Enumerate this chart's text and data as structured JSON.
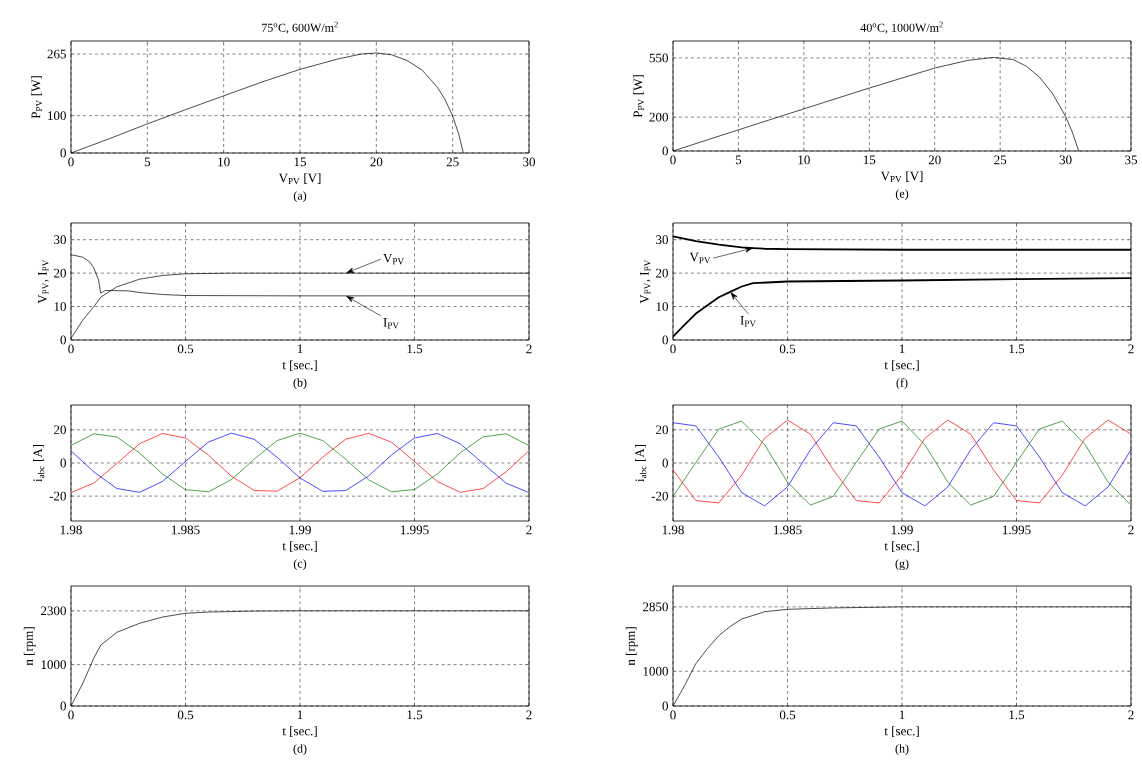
{
  "chart_data": [
    {
      "type": "line",
      "title": "75$^{o}$C, 600W/m$^{2}$",
      "xlabel": "V$_{PV}$ [V]",
      "ylabel": "P$_{PV}$ [W]",
      "annotations": [
        "(a)"
      ],
      "grid": true,
      "xlim": [
        0,
        30
      ],
      "xticks": [
        0,
        5,
        10,
        15,
        20,
        25,
        30
      ],
      "ylim": [
        0,
        300
      ],
      "yticks": [
        0,
        100,
        265
      ],
      "series": [
        {
          "color": "#000000",
          "x": [
            0,
            2.5,
            5,
            7.5,
            10,
            12.5,
            15,
            17.5,
            19,
            20,
            21,
            22,
            23,
            24,
            24.5,
            25,
            25.4,
            25.7
          ],
          "values": [
            0,
            38,
            78,
            116,
            153,
            190,
            224,
            252,
            265,
            268,
            263,
            248,
            222,
            176,
            143,
            99,
            50,
            0
          ]
        }
      ]
    },
    {
      "type": "line",
      "title": "40$^{o}$C, 1000W/m$^{2}$",
      "xlabel": "V$_{PV}$ [V]",
      "ylabel": "P$_{PV}$ [W]",
      "annotations": [
        "(e)"
      ],
      "grid": true,
      "xlim": [
        0,
        35
      ],
      "xticks": [
        0,
        5,
        10,
        15,
        20,
        25,
        30,
        35
      ],
      "ylim": [
        0,
        650
      ],
      "yticks": [
        0,
        200,
        550
      ],
      "series": [
        {
          "color": "#000000",
          "x": [
            0,
            5,
            10,
            15,
            20,
            22.5,
            24.5,
            26,
            27,
            28,
            29,
            30,
            30.5,
            31
          ],
          "values": [
            0,
            125,
            249,
            372,
            490,
            535,
            553,
            540,
            501,
            437,
            340,
            204,
            114,
            0
          ]
        }
      ]
    },
    {
      "type": "line",
      "xlabel": "t [sec.]",
      "ylabel": "V$_{PV}$, I$_{PV}$",
      "annotations": [
        "(b)"
      ],
      "grid": true,
      "xlim": [
        0,
        2
      ],
      "xticks": [
        0,
        0.5,
        1,
        1.5,
        2
      ],
      "ylim": [
        0,
        35
      ],
      "yticks": [
        0,
        10,
        20,
        30
      ],
      "series": [
        {
          "name": "V$_{PV}$",
          "color": "#000000",
          "x": [
            0,
            0.05,
            0.1,
            0.13,
            0.2,
            0.3,
            0.4,
            0.5,
            0.7,
            1,
            1.2,
            1.5,
            2
          ],
          "values": [
            0.5,
            5.8,
            10,
            12.8,
            15.9,
            18.2,
            19.3,
            19.8,
            20,
            20,
            20,
            20,
            20
          ]
        },
        {
          "name": "I$_{PV}$",
          "color": "#000000",
          "x": [
            0,
            0.05,
            0.08,
            0.1,
            0.12,
            0.13,
            0.15,
            0.25,
            0.3,
            0.4,
            0.5,
            1,
            1.2,
            1.5,
            2
          ],
          "values": [
            25.5,
            24.8,
            23.5,
            21.5,
            18,
            14,
            14.8,
            14.7,
            14.2,
            13.6,
            13.3,
            13.2,
            13.2,
            13.2,
            13.2
          ]
        }
      ]
    },
    {
      "type": "line",
      "xlabel": "t [sec.]",
      "ylabel": "V$_{PV}$, I$_{PV}$",
      "annotations": [
        "(f)"
      ],
      "grid": true,
      "xlim": [
        0,
        2
      ],
      "xticks": [
        0,
        0.5,
        1,
        1.5,
        2
      ],
      "ylim": [
        0,
        35
      ],
      "yticks": [
        0,
        10,
        20,
        30
      ],
      "series": [
        {
          "name": "V$_{PV}$",
          "color": "#000000",
          "x": [
            0,
            0.1,
            0.2,
            0.3,
            0.35,
            0.4,
            0.5,
            1,
            1.5,
            2
          ],
          "values": [
            31,
            29.6,
            28.5,
            27.7,
            27.5,
            27.3,
            27.2,
            27,
            27,
            27
          ]
        },
        {
          "name": "I$_{PV}$",
          "color": "#000000",
          "x": [
            0,
            0.05,
            0.1,
            0.2,
            0.25,
            0.3,
            0.35,
            0.5,
            1,
            1.5,
            2
          ],
          "values": [
            1,
            4.5,
            7.9,
            12.8,
            14.4,
            16,
            17,
            17.5,
            17.8,
            18.2,
            18.5
          ]
        }
      ]
    },
    {
      "type": "line",
      "xlabel": "t [sec.]",
      "ylabel": "i$_{abc}$ [A]",
      "annotations": [
        "(c)"
      ],
      "grid": true,
      "xlim": [
        1.98,
        2
      ],
      "xticks": [
        1.98,
        1.985,
        1.99,
        1.995,
        2
      ],
      "ylim": [
        -35,
        35
      ],
      "yticks": [
        -20,
        0,
        20
      ],
      "x": [
        1.98,
        1.981,
        1.982,
        1.983,
        1.984,
        1.985,
        1.986,
        1.987,
        1.988,
        1.989,
        1.99,
        1.991,
        1.992,
        1.993,
        1.994,
        1.995,
        1.996,
        1.997,
        1.998,
        1.999,
        2
      ],
      "series": [
        {
          "color": "#ff0000",
          "values": [
            -17.9,
            -12.1,
            -0.3,
            11.7,
            17.8,
            15.1,
            4.8,
            -7.9,
            -16.6,
            -17.0,
            -8.9,
            3.6,
            14.4,
            17.9,
            12.5,
            0.9,
            -11.2,
            -17.7,
            -15.4,
            -5.3,
            7.4
          ]
        },
        {
          "color": "#0000ff",
          "values": [
            7.3,
            -5.4,
            -15.4,
            -17.7,
            -11.1,
            1.0,
            12.6,
            18.0,
            14.3,
            3.5,
            -9.1,
            -17.1,
            -16.6,
            -7.8,
            4.9,
            15.1,
            17.8,
            11.6,
            -0.4,
            -12.2,
            -17.9
          ]
        },
        {
          "color": "#008000",
          "values": [
            10.6,
            17.6,
            15.7,
            6.0,
            -6.7,
            -16.1,
            -17.4,
            -10.1,
            2.3,
            13.5,
            18.0,
            13.5,
            2.2,
            -10.2,
            -17.4,
            -16.0,
            -6.6,
            6.2,
            15.8,
            17.6,
            10.5
          ]
        }
      ]
    },
    {
      "type": "line",
      "xlabel": "t [sec.]",
      "ylabel": "i$_{abc}$ [A]",
      "annotations": [
        "(g)"
      ],
      "grid": true,
      "xlim": [
        1.98,
        2
      ],
      "xticks": [
        1.98,
        1.985,
        1.99,
        1.995,
        2
      ],
      "ylim": [
        -35,
        35
      ],
      "yticks": [
        -20,
        0,
        20
      ],
      "x": [
        1.98,
        1.981,
        1.982,
        1.983,
        1.984,
        1.985,
        1.986,
        1.987,
        1.988,
        1.989,
        1.99,
        1.991,
        1.992,
        1.993,
        1.994,
        1.995,
        1.996,
        1.997,
        1.998,
        1.999,
        2
      ],
      "series": [
        {
          "color": "#ff0000",
          "values": [
            -4.2,
            -22.7,
            -24.1,
            -7.3,
            14.9,
            25.9,
            17.4,
            -4.2,
            -22.7,
            -24.1,
            -7.3,
            14.9,
            25.9,
            17.4,
            -4.2,
            -22.7,
            -24.1,
            -7.3,
            14.9,
            25.9,
            17.4
          ]
        },
        {
          "color": "#0000ff",
          "values": [
            24.3,
            22.4,
            3.6,
            -17.9,
            -25.9,
            -14.4,
            8.0,
            24.3,
            22.4,
            3.6,
            -17.9,
            -25.9,
            -14.4,
            8.0,
            24.3,
            22.4,
            3.6,
            -17.9,
            -25.9,
            -14.4,
            8.0
          ]
        },
        {
          "color": "#008000",
          "values": [
            -20.1,
            0.3,
            20.5,
            25.3,
            11.0,
            -11.6,
            -25.4,
            -20.1,
            0.3,
            20.5,
            25.3,
            11.0,
            -11.6,
            -25.4,
            -20.1,
            0.3,
            20.5,
            25.3,
            11.0,
            -11.6,
            -25.4
          ]
        }
      ]
    },
    {
      "type": "line",
      "xlabel": "t [sec.]",
      "ylabel": "n [rpm]",
      "annotations": [
        "(d)"
      ],
      "grid": true,
      "xlim": [
        0,
        2
      ],
      "xticks": [
        0,
        0.5,
        1,
        1.5,
        2
      ],
      "ylim": [
        0,
        2900
      ],
      "yticks": [
        0,
        1000,
        2300
      ],
      "series": [
        {
          "color": "#000000",
          "x": [
            0,
            0.05,
            0.1,
            0.13,
            0.2,
            0.3,
            0.4,
            0.5,
            0.6,
            0.8,
            1,
            2
          ],
          "values": [
            0,
            530,
            1160,
            1470,
            1780,
            2000,
            2150,
            2240,
            2270,
            2295,
            2300,
            2300
          ]
        }
      ]
    },
    {
      "type": "line",
      "xlabel": "t [sec.]",
      "ylabel": "n [rpm]",
      "annotations": [
        "(h)"
      ],
      "grid": true,
      "xlim": [
        0,
        2
      ],
      "xticks": [
        0,
        0.5,
        1,
        1.5,
        2
      ],
      "ylim": [
        0,
        3450
      ],
      "yticks": [
        0,
        1000,
        2850
      ],
      "series": [
        {
          "color": "#000000",
          "x": [
            0,
            0.05,
            0.1,
            0.15,
            0.2,
            0.25,
            0.3,
            0.4,
            0.5,
            0.7,
            1,
            2
          ],
          "values": [
            0,
            580,
            1220,
            1650,
            2020,
            2290,
            2500,
            2710,
            2780,
            2820,
            2850,
            2850
          ]
        }
      ]
    }
  ]
}
